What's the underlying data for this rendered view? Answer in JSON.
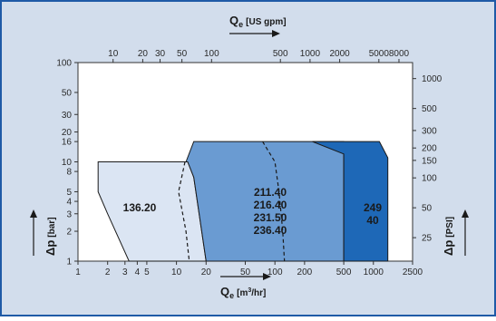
{
  "chart_data": {
    "type": "area",
    "top_axis": {
      "title_main": "Q",
      "title_sub": "e",
      "title_unit": "[US gpm]",
      "ticks": [
        10,
        20,
        30,
        50,
        100,
        500,
        1000,
        2000,
        5000,
        8000
      ],
      "range": [
        4.4,
        11000
      ]
    },
    "bottom_axis": {
      "title_main": "Q",
      "title_sub": "e",
      "title_unit_pre": "[m",
      "title_unit_sup": "3",
      "title_unit_post": "/hr]",
      "ticks": [
        1,
        2,
        3,
        4,
        5,
        10,
        20,
        50,
        100,
        200,
        500,
        1000,
        2500
      ],
      "scale": "log",
      "range": [
        1,
        2500
      ]
    },
    "left_axis": {
      "title_main": "Δp",
      "title_unit": "[bar]",
      "ticks": [
        1,
        2,
        3,
        4,
        5,
        8,
        10,
        16,
        20,
        30,
        50,
        100
      ],
      "scale": "log",
      "range": [
        1,
        100
      ]
    },
    "right_axis": {
      "title_main": "Δp",
      "title_unit": "[PSI]",
      "ticks": [
        25,
        50,
        100,
        150,
        200,
        300,
        500,
        1000
      ],
      "range": [
        14.5,
        1450
      ]
    },
    "regions": [
      {
        "labels": [
          "136.20"
        ],
        "fill": "#dbe5f3",
        "polygon": [
          [
            1.6,
            10
          ],
          [
            13,
            10
          ],
          [
            15,
            7
          ],
          [
            20,
            1
          ],
          [
            3.3,
            1
          ],
          [
            2,
            3
          ],
          [
            1.6,
            5
          ]
        ],
        "dashed": [
          [
            12.2,
            10
          ],
          [
            10.5,
            5
          ],
          [
            12.5,
            2
          ],
          [
            13.5,
            1
          ]
        ]
      },
      {
        "labels": [
          "211.40",
          "216.40",
          "231.50",
          "236.40"
        ],
        "fill": "#6a9bd2",
        "polygon": [
          [
            12.5,
            10
          ],
          [
            15,
            16
          ],
          [
            500,
            16
          ],
          [
            500,
            1
          ],
          [
            20,
            1
          ],
          [
            15,
            7
          ],
          [
            13,
            10
          ]
        ],
        "dashed": [
          [
            75,
            16
          ],
          [
            100,
            10
          ],
          [
            110,
            5
          ],
          [
            120,
            2
          ],
          [
            125,
            1
          ]
        ]
      },
      {
        "labels": [
          "249",
          "40"
        ],
        "fill": "#1e68b7",
        "polygon": [
          [
            240,
            16
          ],
          [
            1150,
            16
          ],
          [
            1400,
            11
          ],
          [
            1400,
            1
          ],
          [
            500,
            1
          ],
          [
            500,
            12
          ]
        ]
      }
    ],
    "colors": {
      "panel": "#d2ddec",
      "border": "#1e5aa6",
      "plot_bg": "#ffffff"
    }
  }
}
